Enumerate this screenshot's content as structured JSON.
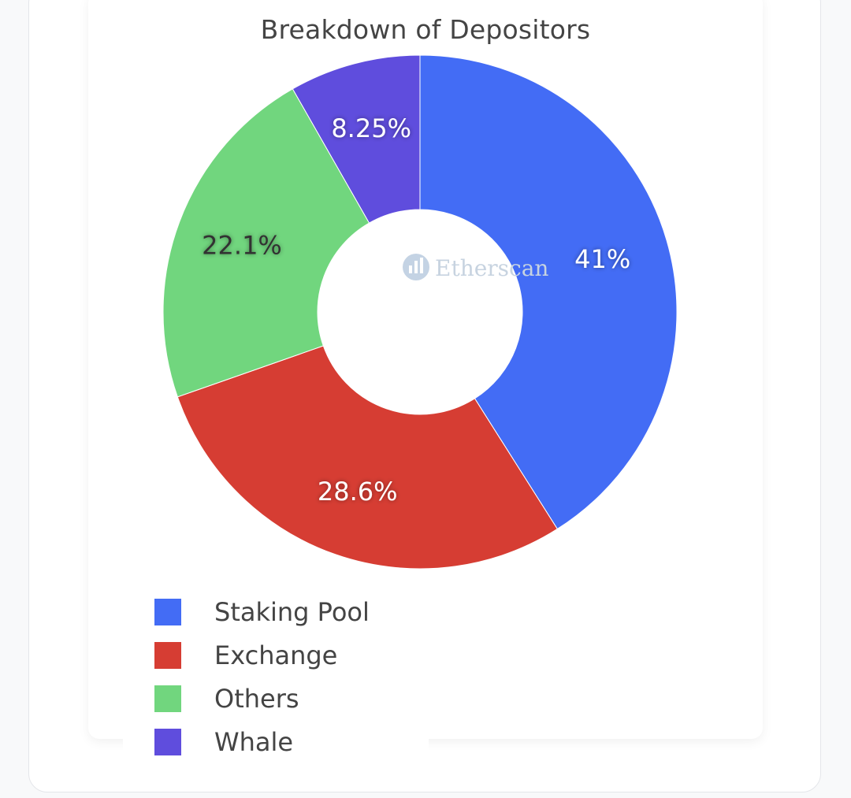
{
  "chart_data": {
    "type": "pie",
    "title": "Breakdown of Depositors",
    "donut": true,
    "watermark": "Etherscan",
    "labels": [
      "Staking Pool",
      "Exchange",
      "Others",
      "Whale"
    ],
    "values": [
      41,
      28.6,
      22.1,
      8.25
    ],
    "value_labels": [
      "41%",
      "28.6%",
      "22.1%",
      "8.25%"
    ],
    "colors": [
      "#436cf5",
      "#d63d33",
      "#71d67e",
      "#5f4ddd"
    ],
    "legend_position": "bottom-left",
    "direction": "clockwise",
    "start": "top"
  }
}
